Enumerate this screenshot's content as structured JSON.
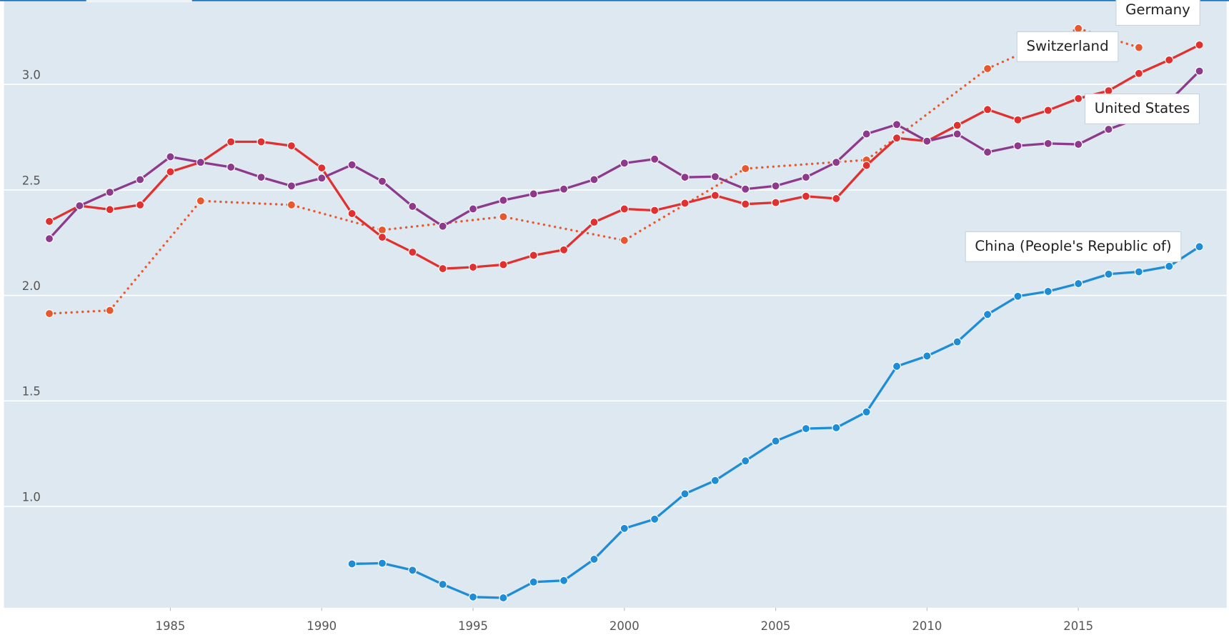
{
  "chart_data": {
    "type": "line",
    "xlim": [
      1979.5,
      2019.9
    ],
    "ylim": [
      0.52,
      3.4
    ],
    "xticks": [
      1985,
      1990,
      1995,
      2000,
      2005,
      2010,
      2015
    ],
    "yticks": [
      {
        "value": 1,
        "label": "1.0"
      },
      1.5,
      {
        "value": 2,
        "label": "2.0"
      },
      2.5,
      {
        "value": 3,
        "label": "3.0"
      }
    ],
    "grid": true,
    "series": [
      {
        "name": "Switzerland",
        "color": "#e8582f",
        "style": "dotted",
        "x": [
          1981,
          1983,
          1986,
          1989,
          1992,
          1996,
          2000,
          2004,
          2008,
          2012,
          2015,
          2017
        ],
        "values": [
          1.914,
          1.929,
          2.448,
          2.429,
          2.31,
          2.373,
          2.261,
          2.601,
          2.642,
          3.075,
          3.265,
          3.175
        ]
      },
      {
        "name": "Germany",
        "color": "#e0302f",
        "style": "solid",
        "x": [
          1981,
          1982,
          1983,
          1984,
          1985,
          1986,
          1987,
          1988,
          1989,
          1990,
          1991,
          1992,
          1993,
          1994,
          1995,
          1996,
          1997,
          1998,
          1999,
          2000,
          2001,
          2002,
          2003,
          2004,
          2005,
          2006,
          2007,
          2008,
          2009,
          2010,
          2011,
          2012,
          2013,
          2014,
          2015,
          2016,
          2017,
          2018,
          2019
        ],
        "values": [
          2.351,
          2.425,
          2.407,
          2.429,
          2.586,
          2.631,
          2.728,
          2.728,
          2.709,
          2.604,
          2.388,
          2.276,
          2.205,
          2.127,
          2.134,
          2.146,
          2.19,
          2.216,
          2.347,
          2.41,
          2.403,
          2.437,
          2.474,
          2.433,
          2.44,
          2.47,
          2.459,
          2.616,
          2.746,
          2.731,
          2.806,
          2.881,
          2.832,
          2.877,
          2.933,
          2.97,
          3.052,
          3.116,
          3.187
        ]
      },
      {
        "name": "United States",
        "color": "#8e3a8c",
        "style": "solid",
        "x": [
          1981,
          1982,
          1983,
          1984,
          1985,
          1986,
          1987,
          1988,
          1989,
          1990,
          1991,
          1992,
          1993,
          1994,
          1995,
          1996,
          1997,
          1998,
          1999,
          2000,
          2001,
          2002,
          2003,
          2004,
          2005,
          2006,
          2007,
          2008,
          2009,
          2010,
          2011,
          2012,
          2013,
          2014,
          2015,
          2016,
          2017,
          2018,
          2019
        ],
        "values": [
          2.269,
          2.425,
          2.489,
          2.549,
          2.657,
          2.631,
          2.608,
          2.56,
          2.519,
          2.556,
          2.619,
          2.541,
          2.422,
          2.328,
          2.41,
          2.451,
          2.481,
          2.504,
          2.549,
          2.627,
          2.646,
          2.56,
          2.563,
          2.504,
          2.519,
          2.56,
          2.631,
          2.765,
          2.81,
          2.731,
          2.765,
          2.679,
          2.709,
          2.72,
          2.716,
          2.787,
          2.84,
          2.92,
          3.063
        ]
      },
      {
        "name": "China (People's Republic of)",
        "color": "#1f8dd6",
        "style": "solid",
        "x": [
          1991,
          1992,
          1993,
          1994,
          1995,
          1996,
          1997,
          1998,
          1999,
          2000,
          2001,
          2002,
          2003,
          2004,
          2005,
          2006,
          2007,
          2008,
          2009,
          2010,
          2011,
          2012,
          2013,
          2014,
          2015,
          2016,
          2017,
          2018,
          2019
        ],
        "values": [
          0.728,
          0.731,
          0.698,
          0.631,
          0.571,
          0.567,
          0.642,
          0.649,
          0.75,
          0.896,
          0.94,
          1.06,
          1.123,
          1.216,
          1.31,
          1.369,
          1.373,
          1.448,
          1.664,
          1.713,
          1.78,
          1.91,
          1.996,
          2.019,
          2.056,
          2.101,
          2.112,
          2.138,
          2.231
        ]
      }
    ]
  }
}
